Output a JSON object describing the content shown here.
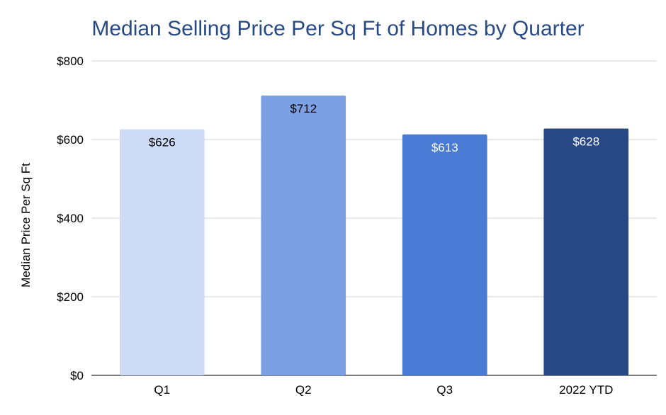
{
  "chart_data": {
    "type": "bar",
    "title": "Median Selling Price Per Sq Ft of Homes by Quarter",
    "xlabel": "",
    "ylabel": "Median Price Per Sq Ft",
    "categories": [
      "Q1",
      "Q2",
      "Q3",
      "2022 YTD"
    ],
    "values": [
      626,
      712,
      613,
      628
    ],
    "data_labels": [
      "$626",
      "$712",
      "$613",
      "$628"
    ],
    "bar_colors": [
      "#cddbf6",
      "#7ba0e4",
      "#4a7bd4",
      "#284785"
    ],
    "label_colors": [
      "#000000",
      "#000000",
      "#ffffff",
      "#ffffff"
    ],
    "ylim": [
      0,
      800
    ],
    "yticks": [
      0,
      200,
      400,
      600,
      800
    ],
    "ytick_labels": [
      "$0",
      "$200",
      "$400",
      "$600",
      "$800"
    ],
    "grid": true,
    "legend": "none"
  }
}
